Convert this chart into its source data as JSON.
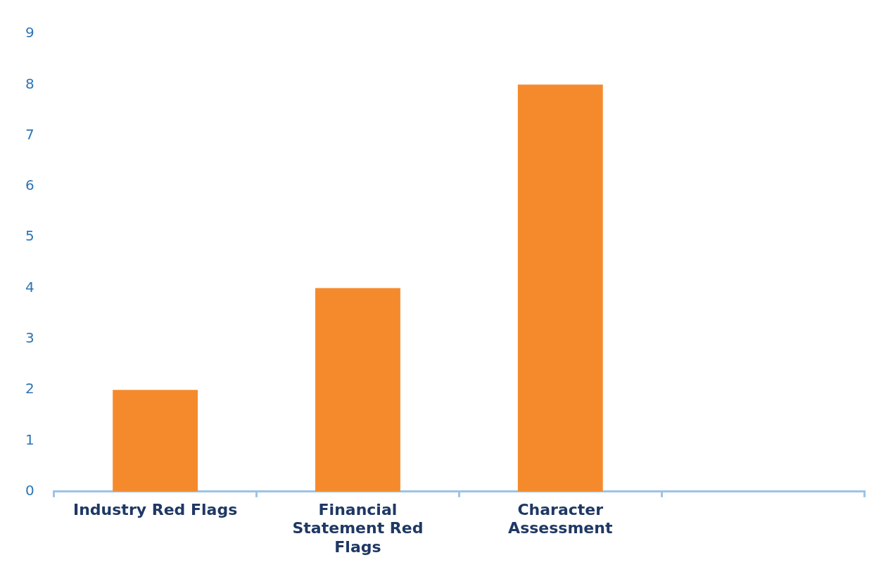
{
  "chart_data": {
    "type": "bar",
    "categories": [
      "Industry Red Flags",
      "Financial Statement Red Flags",
      "Character Assessment",
      null
    ],
    "values": [
      2,
      4,
      8,
      null
    ],
    "color": "#f58a2c",
    "ylim": [
      0,
      9
    ],
    "yticks": [
      0,
      1,
      2,
      3,
      4,
      5,
      6,
      7,
      8,
      9
    ],
    "grid": false,
    "legend": false
  }
}
